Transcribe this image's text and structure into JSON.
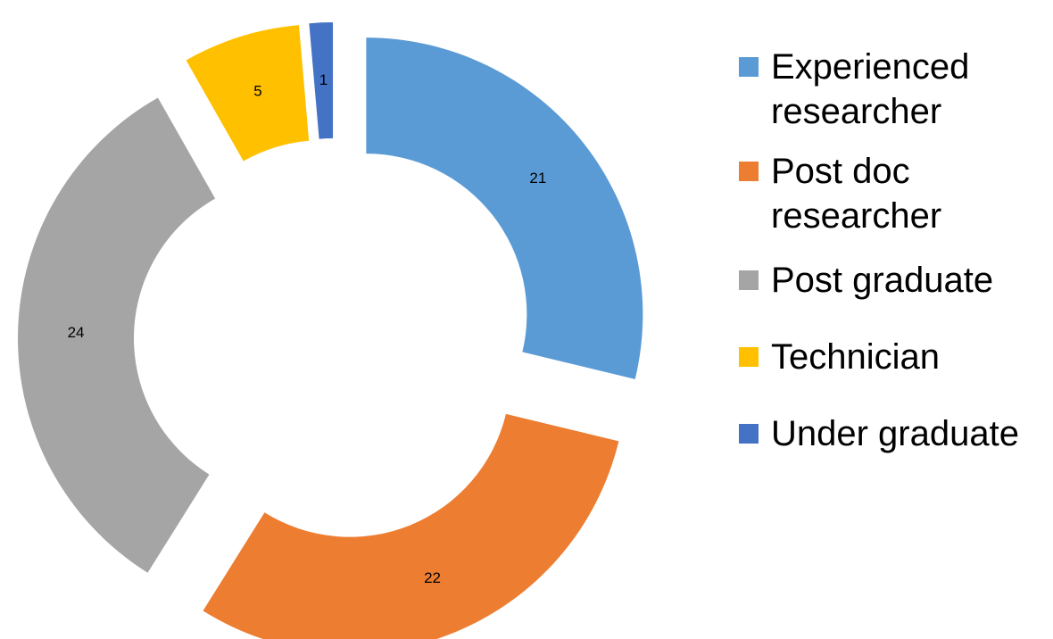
{
  "chart_data": {
    "type": "donut",
    "categories": [
      "Experienced researcher",
      "Post doc researcher",
      "Post graduate",
      "Technician",
      "Under graduate"
    ],
    "values": [
      21,
      22,
      24,
      5,
      1
    ],
    "colors": [
      "#5b9bd5",
      "#ed7d31",
      "#a5a5a5",
      "#ffc000",
      "#4472c4"
    ],
    "legend": "right"
  }
}
